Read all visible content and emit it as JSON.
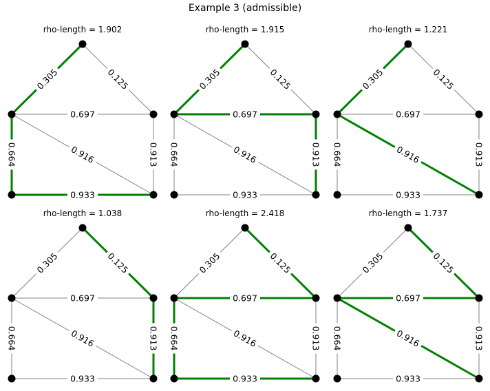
{
  "figure": {
    "title": "Example 3 (admissible)",
    "colors": {
      "highlight": "#008000",
      "normal": "#808080",
      "node": "#000000",
      "label_bg": "#ffffff"
    }
  },
  "graph": {
    "nodes": [
      "top",
      "left",
      "right",
      "bottom-left",
      "bottom-right"
    ],
    "edges": [
      {
        "id": "left-top",
        "from": "left",
        "to": "top",
        "label": "0.305"
      },
      {
        "id": "top-right",
        "from": "top",
        "to": "right",
        "label": "0.125"
      },
      {
        "id": "left-right",
        "from": "left",
        "to": "right",
        "label": "0.697"
      },
      {
        "id": "left-bottom-right",
        "from": "left",
        "to": "bottom-right",
        "label": "0.916"
      },
      {
        "id": "left-bottom-left",
        "from": "left",
        "to": "bottom-left",
        "label": "0.664"
      },
      {
        "id": "right-bottom-right",
        "from": "right",
        "to": "bottom-right",
        "label": "0.913"
      },
      {
        "id": "bottom-left-bottom-right",
        "from": "bottom-left",
        "to": "bottom-right",
        "label": "0.933"
      }
    ]
  },
  "panels": [
    {
      "title": "rho-length = 1.902",
      "highlighted": [
        "left-top",
        "left-bottom-left",
        "bottom-left-bottom-right"
      ]
    },
    {
      "title": "rho-length = 1.915",
      "highlighted": [
        "left-top",
        "left-right",
        "right-bottom-right"
      ]
    },
    {
      "title": "rho-length = 1.221",
      "highlighted": [
        "left-top",
        "left-bottom-right"
      ]
    },
    {
      "title": "rho-length = 1.038",
      "highlighted": [
        "top-right",
        "right-bottom-right"
      ]
    },
    {
      "title": "rho-length = 2.418",
      "highlighted": [
        "top-right",
        "left-right",
        "left-bottom-left",
        "bottom-left-bottom-right"
      ]
    },
    {
      "title": "rho-length = 1.737",
      "highlighted": [
        "top-right",
        "left-right",
        "left-bottom-right"
      ]
    }
  ]
}
